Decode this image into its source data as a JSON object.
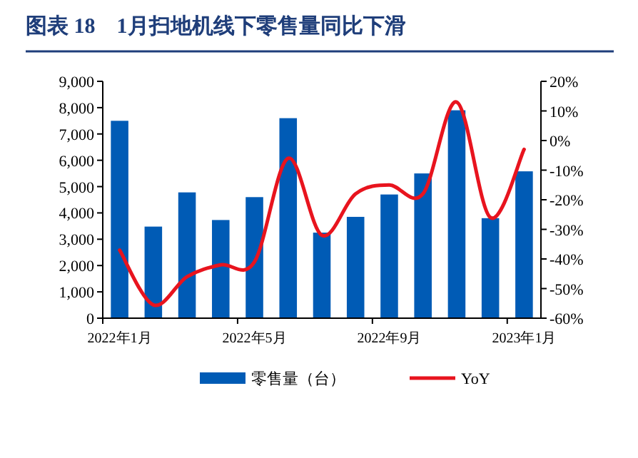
{
  "chart_data": {
    "type": "bar",
    "title": "图表 18　1月扫地机线下零售量同比下滑",
    "categories": [
      "2022年1月",
      null,
      null,
      null,
      "2022年5月",
      null,
      null,
      null,
      "2022年9月",
      null,
      null,
      null,
      "2023年1月"
    ],
    "series": [
      {
        "name": "零售量（台）",
        "color": "#005bb5",
        "values": [
          7500,
          3480,
          4780,
          3730,
          4600,
          7600,
          3250,
          3850,
          4700,
          5500,
          7900,
          3800,
          5580
        ]
      },
      {
        "name": "YoY",
        "type": "line",
        "axis": "y2",
        "color": "#e8141e",
        "values": [
          -37,
          -55.5,
          -46,
          -42,
          -41,
          -6,
          -32,
          -18,
          -15,
          -18,
          13,
          -26,
          -3
        ]
      }
    ],
    "ylim": [
      0,
      9000
    ],
    "yticks": [
      {
        "value": 0,
        "label": "0"
      },
      {
        "value": 1000,
        "label": "1,000"
      },
      {
        "value": 2000,
        "label": "2,000"
      },
      {
        "value": 3000,
        "label": "3,000"
      },
      {
        "value": 4000,
        "label": "4,000"
      },
      {
        "value": 5000,
        "label": "5,000"
      },
      {
        "value": 6000,
        "label": "6,000"
      },
      {
        "value": 7000,
        "label": "7,000"
      },
      {
        "value": 8000,
        "label": "8,000"
      },
      {
        "value": 9000,
        "label": "9,000"
      }
    ],
    "y2lim": [
      -60,
      20
    ],
    "y2ticks": [
      {
        "value": -60,
        "label": "-60%"
      },
      {
        "value": -50,
        "label": "-50%"
      },
      {
        "value": -40,
        "label": "-40%"
      },
      {
        "value": -30,
        "label": "-30%"
      },
      {
        "value": -20,
        "label": "-20%"
      },
      {
        "value": -10,
        "label": "-10%"
      },
      {
        "value": 0,
        "label": "0%"
      },
      {
        "value": 10,
        "label": "10%"
      },
      {
        "value": 20,
        "label": "20%"
      }
    ],
    "grid": false,
    "legend": "bottom"
  }
}
